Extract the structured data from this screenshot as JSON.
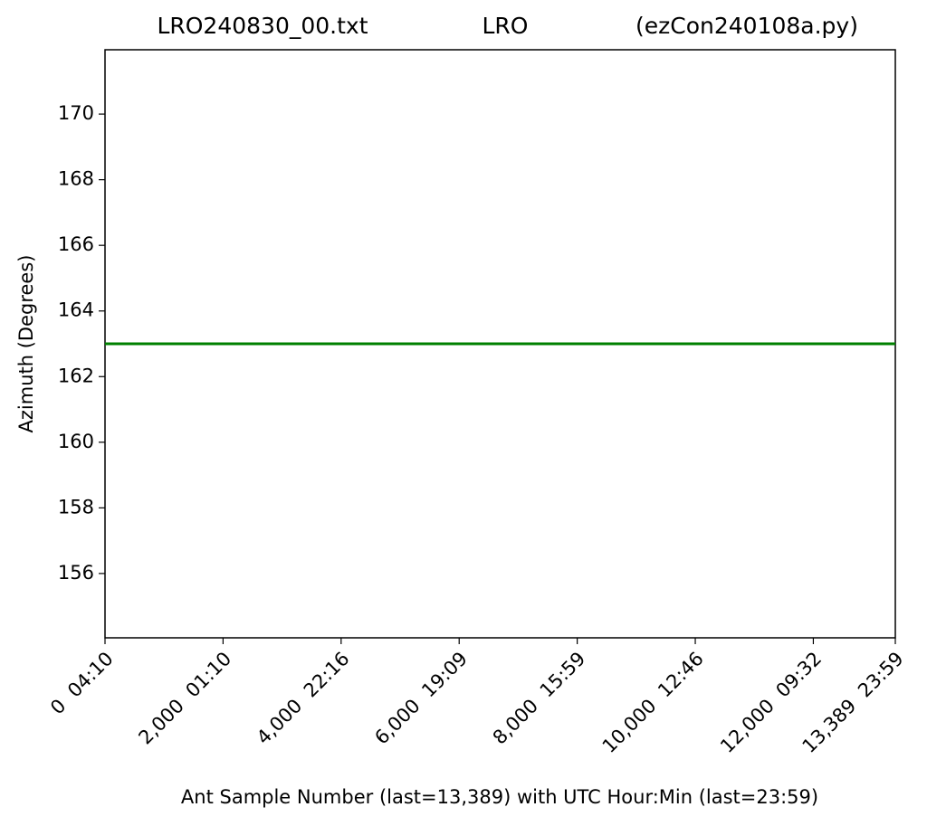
{
  "chart_data": {
    "type": "line",
    "title": [
      "LRO240830_00.txt",
      "LRO",
      "(ezCon240108a.py)"
    ],
    "x_label": "Ant Sample Number (last=13,389) with UTC Hour:Min (last=23:59)",
    "y_label": "Azimuth (Degrees)",
    "x": [
      0,
      13389
    ],
    "series": [
      {
        "color": "#008000",
        "values": [
          163,
          163
        ]
      }
    ],
    "xlim": [
      0,
      13389
    ],
    "xticks": [
      {
        "value": 0,
        "label": "0  04:10"
      },
      {
        "value": 2000,
        "label": "2,000  01:10"
      },
      {
        "value": 4000,
        "label": "4,000  22:16"
      },
      {
        "value": 6000,
        "label": "6,000  19:09"
      },
      {
        "value": 8000,
        "label": "8,000  15:59"
      },
      {
        "value": 10000,
        "label": "10,000  12:46"
      },
      {
        "value": 12000,
        "label": "12,000  09:32"
      },
      {
        "value": 13389,
        "label": "13,389  23:59"
      }
    ],
    "ylim": [
      154.04,
      171.96
    ],
    "yticks": [
      156,
      158,
      160,
      162,
      164,
      166,
      168,
      170
    ],
    "grid": false
  }
}
